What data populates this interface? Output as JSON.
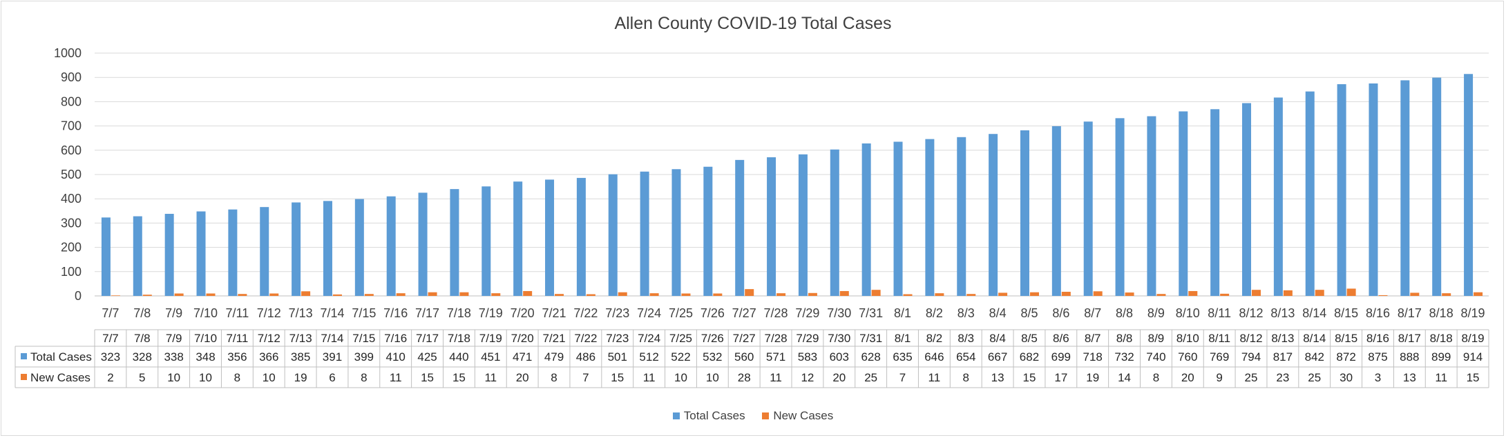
{
  "chart_data": {
    "type": "bar",
    "title": "Allen County COVID-19 Total Cases",
    "xlabel": "",
    "ylabel": "",
    "ylim": [
      0,
      1000
    ],
    "yticks": [
      0,
      100,
      200,
      300,
      400,
      500,
      600,
      700,
      800,
      900,
      1000
    ],
    "grid": true,
    "legend_position": "bottom",
    "data_table": true,
    "categories": [
      "7/7",
      "7/8",
      "7/9",
      "7/10",
      "7/11",
      "7/12",
      "7/13",
      "7/14",
      "7/15",
      "7/16",
      "7/17",
      "7/18",
      "7/19",
      "7/20",
      "7/21",
      "7/22",
      "7/23",
      "7/24",
      "7/25",
      "7/26",
      "7/27",
      "7/28",
      "7/29",
      "7/30",
      "7/31",
      "8/1",
      "8/2",
      "8/3",
      "8/4",
      "8/5",
      "8/6",
      "8/7",
      "8/8",
      "8/9",
      "8/10",
      "8/11",
      "8/12",
      "8/13",
      "8/14",
      "8/15",
      "8/16",
      "8/17",
      "8/18",
      "8/19"
    ],
    "series": [
      {
        "name": "Total Cases",
        "color": "#5b9bd5",
        "values": [
          323,
          328,
          338,
          348,
          356,
          366,
          385,
          391,
          399,
          410,
          425,
          440,
          451,
          471,
          479,
          486,
          501,
          512,
          522,
          532,
          560,
          571,
          583,
          603,
          628,
          635,
          646,
          654,
          667,
          682,
          699,
          718,
          732,
          740,
          760,
          769,
          794,
          817,
          842,
          872,
          875,
          888,
          899,
          914
        ]
      },
      {
        "name": "New Cases",
        "color": "#ed7d31",
        "values": [
          2,
          5,
          10,
          10,
          8,
          10,
          19,
          6,
          8,
          11,
          15,
          15,
          11,
          20,
          8,
          7,
          15,
          11,
          10,
          10,
          28,
          11,
          12,
          20,
          25,
          7,
          11,
          8,
          13,
          15,
          17,
          19,
          14,
          8,
          20,
          9,
          25,
          23,
          25,
          30,
          3,
          13,
          11,
          15
        ]
      }
    ]
  }
}
